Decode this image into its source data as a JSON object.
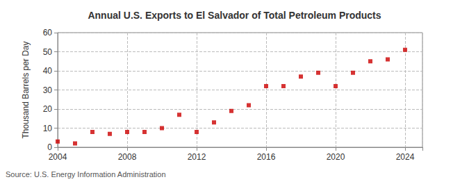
{
  "chart_data": {
    "type": "scatter",
    "title": "Annual U.S. Exports to El Salvador of Total Petroleum Products",
    "y_label": "Thousand Barrels per Day",
    "source": "Source: U.S. Energy Information Administration",
    "x": [
      2004,
      2005,
      2006,
      2007,
      2008,
      2009,
      2010,
      2011,
      2012,
      2013,
      2014,
      2015,
      2016,
      2017,
      2018,
      2019,
      2020,
      2021,
      2022,
      2023,
      2024
    ],
    "values": [
      3,
      2,
      8,
      7,
      8,
      8,
      10,
      17,
      8,
      13,
      19,
      22,
      32,
      32,
      37,
      39,
      32,
      39,
      45,
      46,
      51
    ],
    "color": "#cc0000",
    "marker": "square",
    "xlim": [
      2004,
      2025
    ],
    "xticks": [
      2004,
      2008,
      2012,
      2016,
      2020,
      2024
    ],
    "ylim": [
      0,
      60
    ],
    "yticks": [
      0,
      10,
      20,
      30,
      40,
      50,
      60
    ],
    "grid": true
  }
}
